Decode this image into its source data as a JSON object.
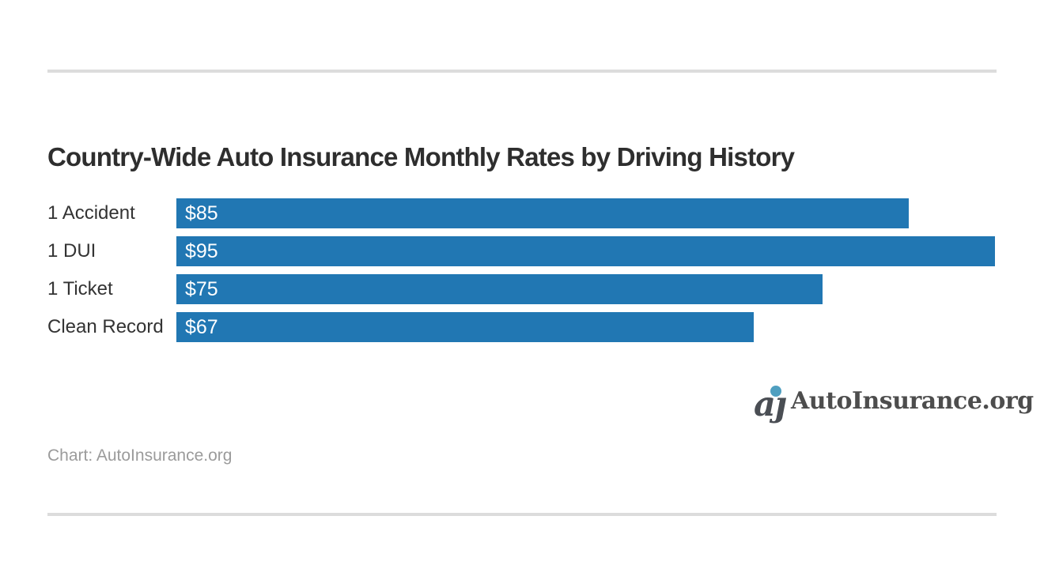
{
  "page": {
    "background_color": "#ffffff",
    "divider_color": "#dcdcdc"
  },
  "chart_data": {
    "type": "bar",
    "orientation": "horizontal",
    "title": "Country-Wide Auto Insurance Monthly Rates by Driving History",
    "categories": [
      "1 Accident",
      "1 DUI",
      "1 Ticket",
      "Clean Record"
    ],
    "values": [
      85,
      95,
      75,
      67
    ],
    "value_labels": [
      "$85",
      "$95",
      "$75",
      "$67"
    ],
    "value_unit": "USD per month",
    "xlabel": "",
    "ylabel": "",
    "xlim": [
      0,
      95
    ],
    "grid": false,
    "legend": null,
    "bar_color": "#2177b3",
    "value_label_color": "#ffffff",
    "category_label_color": "#333333",
    "title_color": "#2e2e2e"
  },
  "footer": {
    "source_text": "Chart: AutoInsurance.org",
    "source_color": "#9b9b9b",
    "logo": {
      "monogram": "aȷ",
      "monogram_color": "#4a4e54",
      "dot_color": "#4f9fc0",
      "text": "AutoInsurance.org",
      "text_color": "#4d4d4d"
    }
  }
}
